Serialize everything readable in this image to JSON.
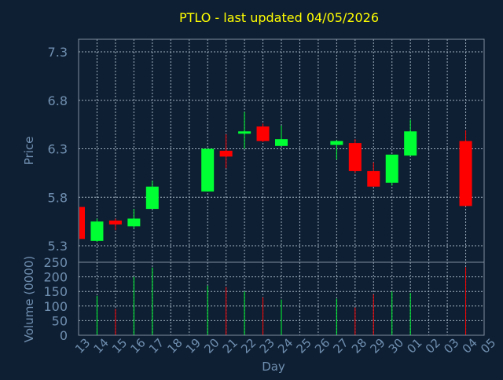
{
  "chart_data": [
    {
      "type": "candlestick",
      "title": "PTLO - last updated 04/05/2026",
      "ylabel": "Price",
      "ylim": [
        5.13,
        7.43
      ],
      "yticks": [
        "5.3",
        "5.8",
        "6.3",
        "6.8",
        "7.3"
      ],
      "grid": true,
      "up_color": "#00ff33",
      "down_color": "#ff0000",
      "candles": [
        {
          "day": "13",
          "open": 5.7,
          "high": 5.7,
          "low": 5.36,
          "close": 5.37
        },
        {
          "day": "14",
          "open": 5.35,
          "high": 5.58,
          "low": 5.34,
          "close": 5.55
        },
        {
          "day": "15",
          "open": 5.56,
          "high": 5.58,
          "low": 5.46,
          "close": 5.52
        },
        {
          "day": "16",
          "open": 5.5,
          "high": 5.68,
          "low": 5.48,
          "close": 5.58
        },
        {
          "day": "17",
          "open": 5.68,
          "high": 5.97,
          "low": 5.68,
          "close": 5.91
        },
        {
          "day": "20",
          "open": 5.86,
          "high": 6.3,
          "low": 5.86,
          "close": 6.3
        },
        {
          "day": "21",
          "open": 6.28,
          "high": 6.45,
          "low": 6.1,
          "close": 6.22
        },
        {
          "day": "22",
          "open": 6.46,
          "high": 6.68,
          "low": 6.3,
          "close": 6.48
        },
        {
          "day": "23",
          "open": 6.53,
          "high": 6.56,
          "low": 6.37,
          "close": 6.38
        },
        {
          "day": "24",
          "open": 6.33,
          "high": 6.54,
          "low": 6.33,
          "close": 6.4
        },
        {
          "day": "27",
          "open": 6.34,
          "high": 6.39,
          "low": 6.19,
          "close": 6.38
        },
        {
          "day": "28",
          "open": 6.36,
          "high": 6.4,
          "low": 6.05,
          "close": 6.07
        },
        {
          "day": "29",
          "open": 6.07,
          "high": 6.16,
          "low": 5.91,
          "close": 5.91
        },
        {
          "day": "30",
          "open": 5.95,
          "high": 6.24,
          "low": 5.92,
          "close": 6.24
        },
        {
          "day": "01",
          "open": 6.23,
          "high": 6.6,
          "low": 6.23,
          "close": 6.48
        },
        {
          "day": "04",
          "open": 6.38,
          "high": 6.49,
          "low": 5.71,
          "close": 5.71
        }
      ]
    },
    {
      "type": "bar",
      "ylabel": "Volume (0000)",
      "xlabel": "Day",
      "ylim": [
        0,
        250
      ],
      "yticks": [
        "0",
        "50",
        "100",
        "150",
        "200",
        "250"
      ],
      "categories": [
        "13",
        "14",
        "15",
        "16",
        "17",
        "18",
        "19",
        "20",
        "21",
        "22",
        "23",
        "24",
        "25",
        "26",
        "27",
        "28",
        "29",
        "30",
        "01",
        "02",
        "03",
        "04",
        "05"
      ],
      "values": [
        0,
        135,
        90,
        200,
        232,
        0,
        0,
        170,
        165,
        150,
        130,
        122,
        0,
        0,
        125,
        95,
        140,
        150,
        145,
        0,
        0,
        233,
        0
      ],
      "directions": [
        "down",
        "up",
        "down",
        "up",
        "up",
        "",
        "",
        "up",
        "down",
        "up",
        "down",
        "up",
        "",
        "",
        "up",
        "down",
        "down",
        "up",
        "up",
        "",
        "",
        "down",
        ""
      ]
    }
  ]
}
